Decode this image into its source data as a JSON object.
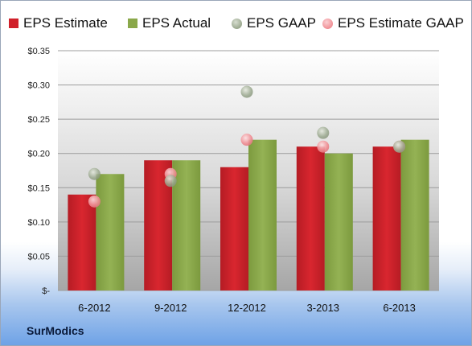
{
  "legend": [
    {
      "label": "EPS Estimate",
      "color": "#d0202a",
      "shape": "square"
    },
    {
      "label": "EPS Actual",
      "color": "#8aa84a",
      "shape": "square"
    },
    {
      "label": "EPS GAAP",
      "color": "#9aa88e",
      "shape": "circle"
    },
    {
      "label": "EPS Estimate GAAP",
      "color": "#f08f95",
      "shape": "circle"
    }
  ],
  "brand": "SurModics",
  "chart_data": {
    "type": "bar",
    "categories": [
      "6-2012",
      "9-2012",
      "12-2012",
      "3-2013",
      "6-2013"
    ],
    "series": [
      {
        "name": "EPS Estimate",
        "type": "bar",
        "color": "#d0202a",
        "values": [
          0.14,
          0.19,
          0.18,
          0.21,
          0.21
        ]
      },
      {
        "name": "EPS Actual",
        "type": "bar",
        "color": "#8aa84a",
        "values": [
          0.17,
          0.19,
          0.22,
          0.2,
          0.22
        ]
      },
      {
        "name": "EPS GAAP",
        "type": "scatter",
        "color": "#9aa88e",
        "values": [
          0.17,
          0.16,
          0.29,
          0.23,
          0.21
        ]
      },
      {
        "name": "EPS Estimate GAAP",
        "type": "scatter",
        "color": "#f08f95",
        "values": [
          0.13,
          0.17,
          0.22,
          0.21,
          0.21
        ]
      }
    ],
    "ylim": [
      0,
      0.35
    ],
    "yticks": [
      0,
      0.05,
      0.1,
      0.15,
      0.2,
      0.25,
      0.3,
      0.35
    ],
    "ytick_labels": [
      "$-",
      "$0.05",
      "$0.10",
      "$0.15",
      "$0.20",
      "$0.25",
      "$0.30",
      "$0.35"
    ],
    "grid": true,
    "legend_position": "top"
  }
}
